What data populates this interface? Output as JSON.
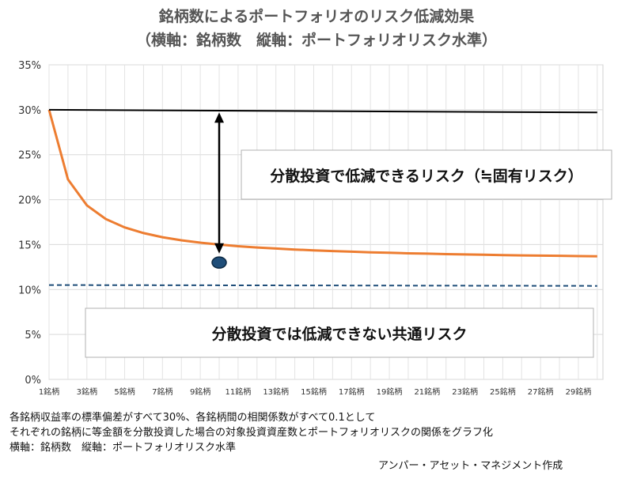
{
  "titles": {
    "line1": "銘柄数によるポートフォリオのリスク低減効果",
    "line2": "（横軸：銘柄数　縦軸：ポートフォリオリスク水準）"
  },
  "annotations": {
    "diversifiable": "分散投資で低減できるリスク（≒固有リスク）",
    "systematic": "分散投資では低減できない共通リスク"
  },
  "notes": [
    "各銘柄収益率の標準偏差がすべて30%、各銘柄間の相関係数がすべて0.1として",
    "それぞれの銘柄に等金額を分散投資した場合の対象投資資産数とポートフォリオリスクの関係をグラフ化",
    "横軸：銘柄数　縦軸：ポートフォリオリスク水準"
  ],
  "credit": "アンパー・アセット・マネジメント作成",
  "chart_data": {
    "type": "line",
    "x_range": [
      1,
      30
    ],
    "ylim": [
      0,
      35
    ],
    "y_ticks": [
      "0%",
      "5%",
      "10%",
      "15%",
      "20%",
      "25%",
      "30%",
      "35%"
    ],
    "x_tick_labels": [
      "1銘柄",
      "3銘柄",
      "5銘柄",
      "7銘柄",
      "9銘柄",
      "11銘柄",
      "13銘柄",
      "15銘柄",
      "17銘柄",
      "19銘柄",
      "21銘柄",
      "23銘柄",
      "25銘柄",
      "27銘柄",
      "29銘柄"
    ],
    "grid": true,
    "series": [
      {
        "role": "portfolio-risk",
        "color": "#ED7D31",
        "x": [
          1,
          2,
          3,
          4,
          5,
          6,
          7,
          8,
          9,
          10,
          11,
          12,
          13,
          14,
          15,
          16,
          17,
          18,
          19,
          20,
          21,
          22,
          23,
          24,
          25,
          26,
          27,
          28,
          29,
          30
        ],
        "y": [
          30.0,
          22.25,
          19.36,
          17.84,
          16.91,
          16.28,
          15.82,
          15.48,
          15.21,
          15.0,
          14.82,
          14.68,
          14.56,
          14.45,
          14.36,
          14.28,
          14.21,
          14.14,
          14.09,
          14.03,
          13.99,
          13.94,
          13.9,
          13.87,
          13.83,
          13.8,
          13.77,
          13.75,
          13.72,
          13.7
        ]
      },
      {
        "role": "individual-stock-risk",
        "color": "#000000",
        "x": [
          1,
          30
        ],
        "y": [
          30,
          29.7
        ]
      },
      {
        "role": "systematic-risk",
        "color": "#1F4E79",
        "dashed": true,
        "x": [
          1,
          30
        ],
        "y": [
          10.5,
          10.4
        ]
      }
    ],
    "highlight_point": {
      "x": 10,
      "y": 13.0,
      "color": "#1F4E79"
    },
    "arrow": {
      "x": 10,
      "from": 29.7,
      "to": 14.0
    }
  }
}
